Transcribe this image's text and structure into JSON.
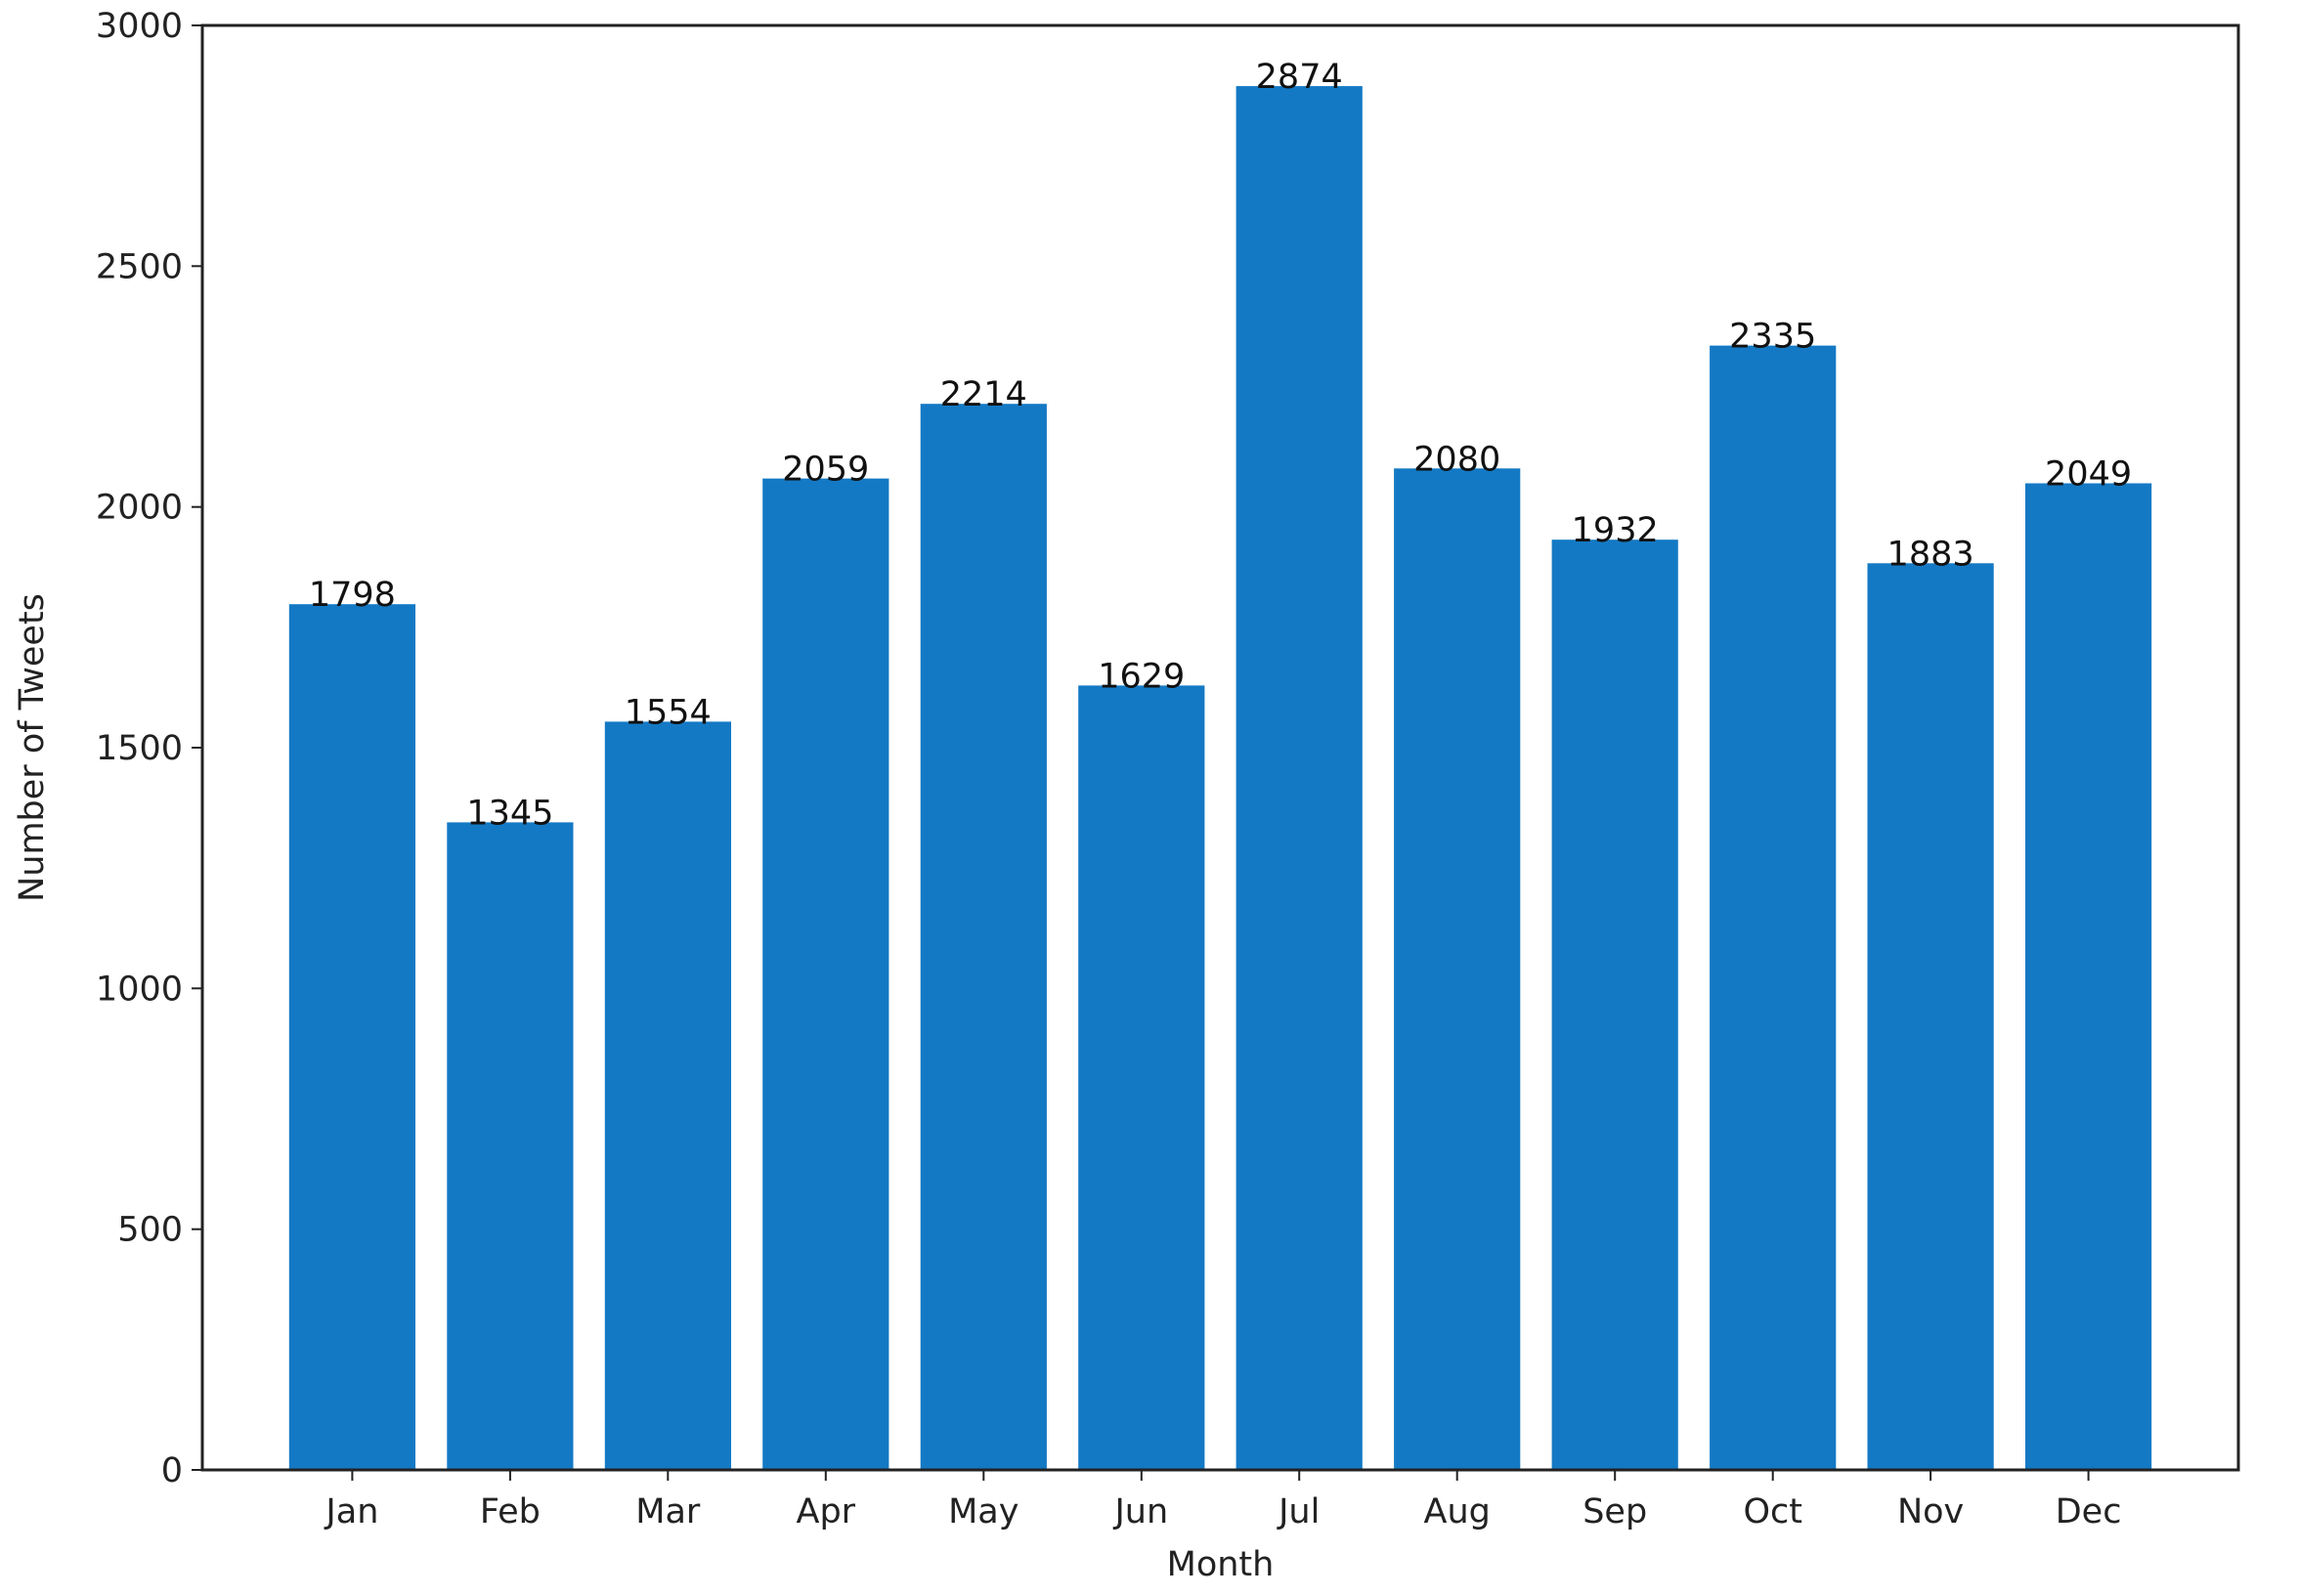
{
  "chart_data": {
    "type": "bar",
    "categories": [
      "Jan",
      "Feb",
      "Mar",
      "Apr",
      "May",
      "Jun",
      "Jul",
      "Aug",
      "Sep",
      "Oct",
      "Nov",
      "Dec"
    ],
    "values": [
      1798,
      1345,
      1554,
      2059,
      2214,
      1629,
      2874,
      2080,
      1932,
      2335,
      1883,
      2049
    ],
    "title": "",
    "xlabel": "Month",
    "ylabel": "Number of Tweets",
    "ylim": [
      0,
      3000
    ],
    "yticks": [
      0,
      500,
      1000,
      1500,
      2000,
      2500,
      3000
    ],
    "grid": false,
    "legend": "none",
    "bar_color": "#1479c4",
    "data_labels": true
  }
}
